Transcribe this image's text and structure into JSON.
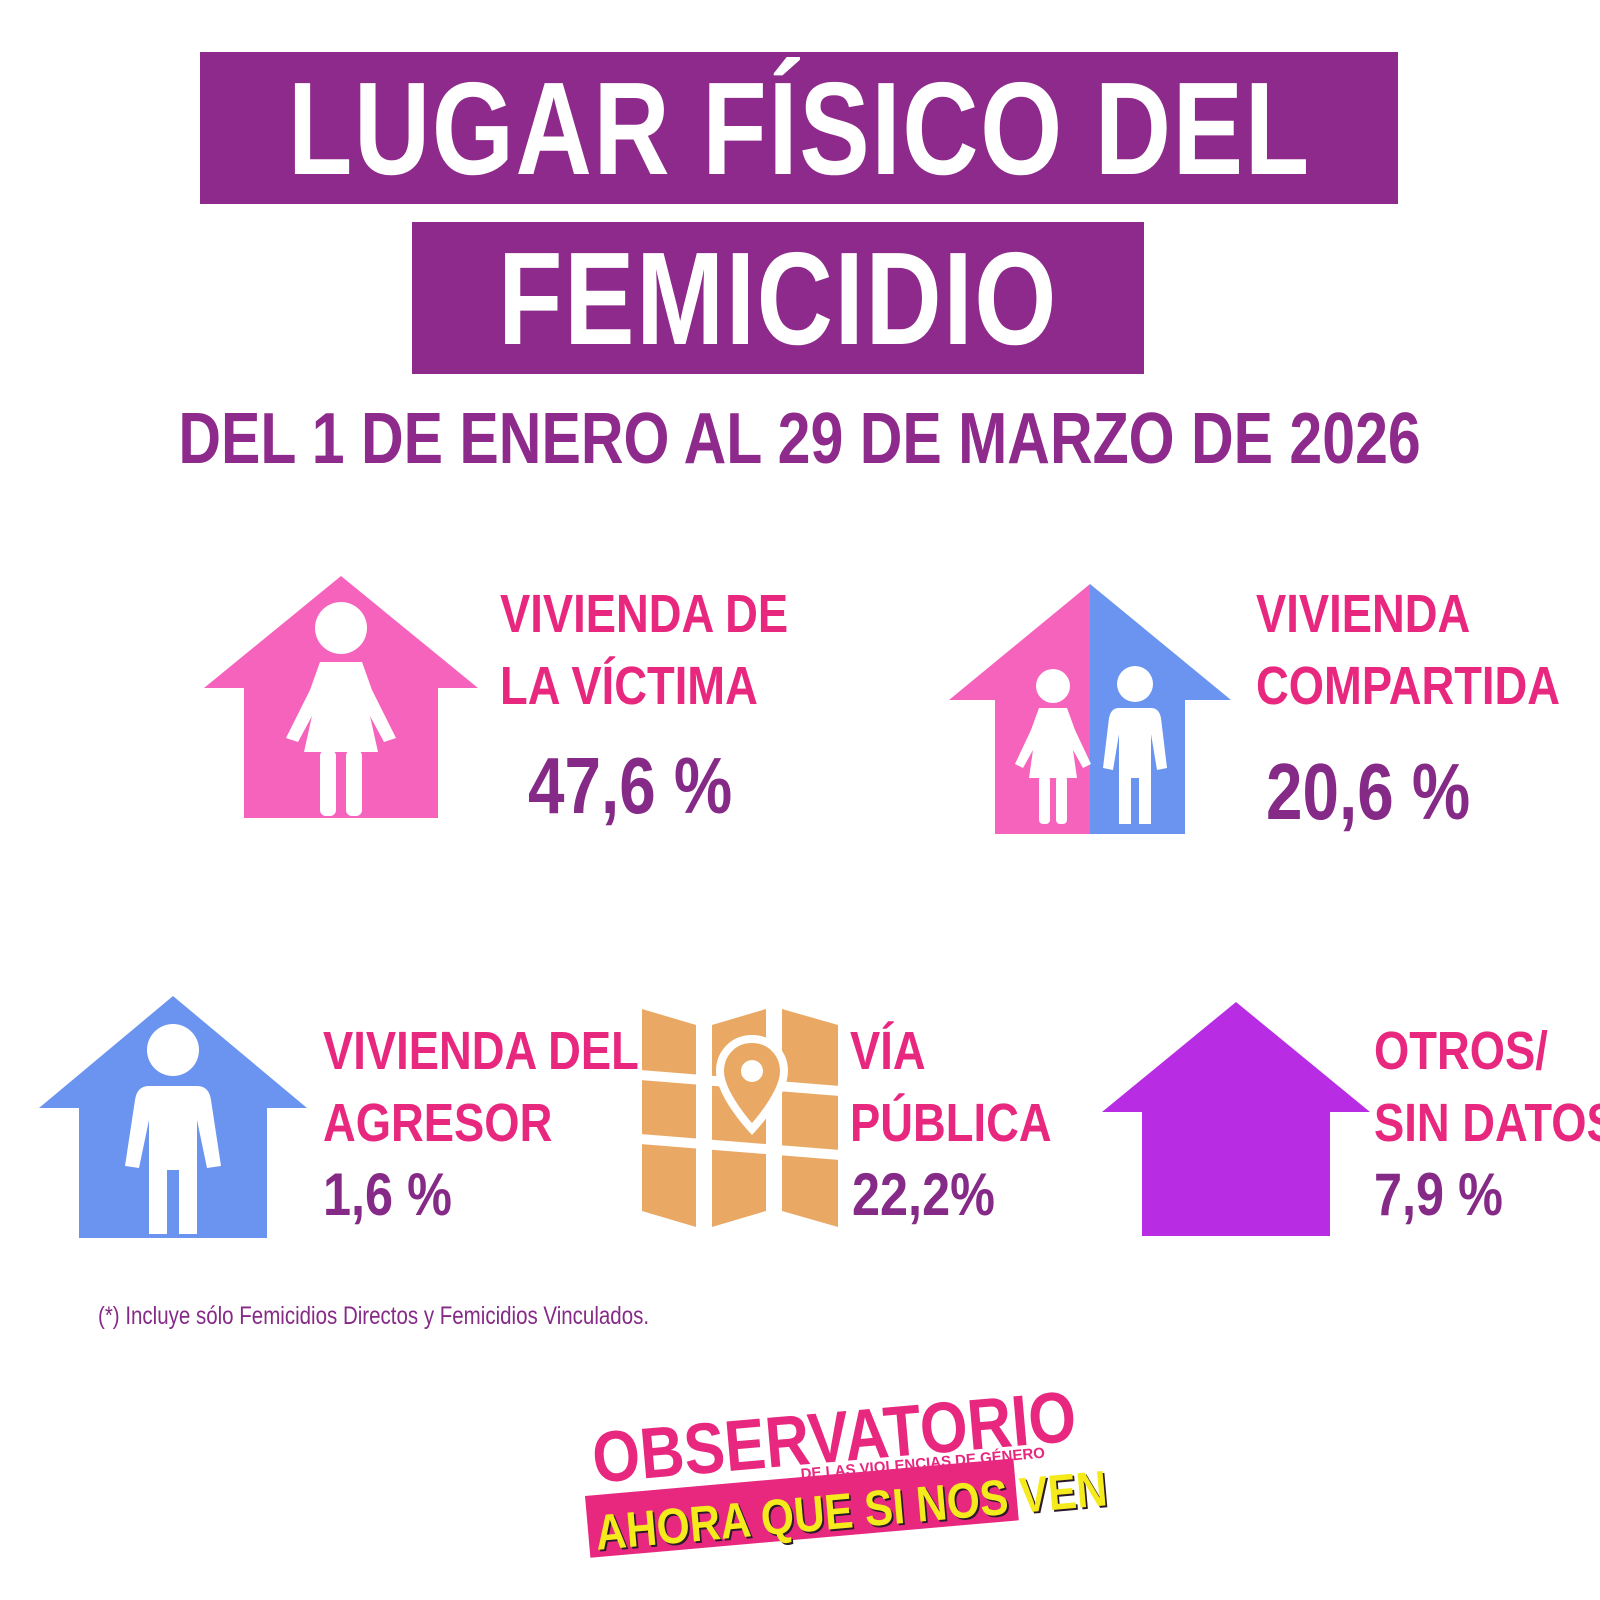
{
  "title": {
    "line1": "LUGAR FÍSICO DEL",
    "line2": "FEMICIDIO"
  },
  "subtitle": "DEL 1 DE ENERO AL 29 DE MARZO DE 2026",
  "categories": [
    {
      "label_line1": "VIVIENDA DE",
      "label_line2": "LA VÍCTIMA",
      "value_text": "47,6 %",
      "value": 47.6,
      "icon": "house-woman-icon",
      "color": "#f663bd"
    },
    {
      "label_line1": "VIVIENDA",
      "label_line2": "COMPARTIDA",
      "value_text": "20,6 %",
      "value": 20.6,
      "icon": "house-couple-icon",
      "color": "#6a94ef"
    },
    {
      "label_line1": "VIVIENDA DEL",
      "label_line2": "AGRESOR",
      "value_text": "1,6 %",
      "value": 1.6,
      "icon": "house-man-icon",
      "color": "#6a94ef"
    },
    {
      "label_line1": "VÍA",
      "label_line2": "PÚBLICA",
      "value_text": "22,2%",
      "value": 22.2,
      "icon": "map-pin-icon",
      "color": "#e9a964"
    },
    {
      "label_line1": "OTROS/",
      "label_line2": "SIN DATOS",
      "value_text": "7,9 %",
      "value": 7.9,
      "icon": "house-icon",
      "color": "#b82de3"
    }
  ],
  "footnote": "(*) Incluye sólo Femicidios Directos y Femicidios Vinculados.",
  "logo": {
    "main": "OBSERVATORIO",
    "sub": "DE LAS VIOLENCIAS DE GÉNERO",
    "tagline": "AHORA QUE SI NOS VEN"
  },
  "colors": {
    "title_band": "#8e2a8b",
    "label_text": "#e8287f",
    "value_text": "#862a88",
    "logo_yellow": "#f5ea1c"
  }
}
